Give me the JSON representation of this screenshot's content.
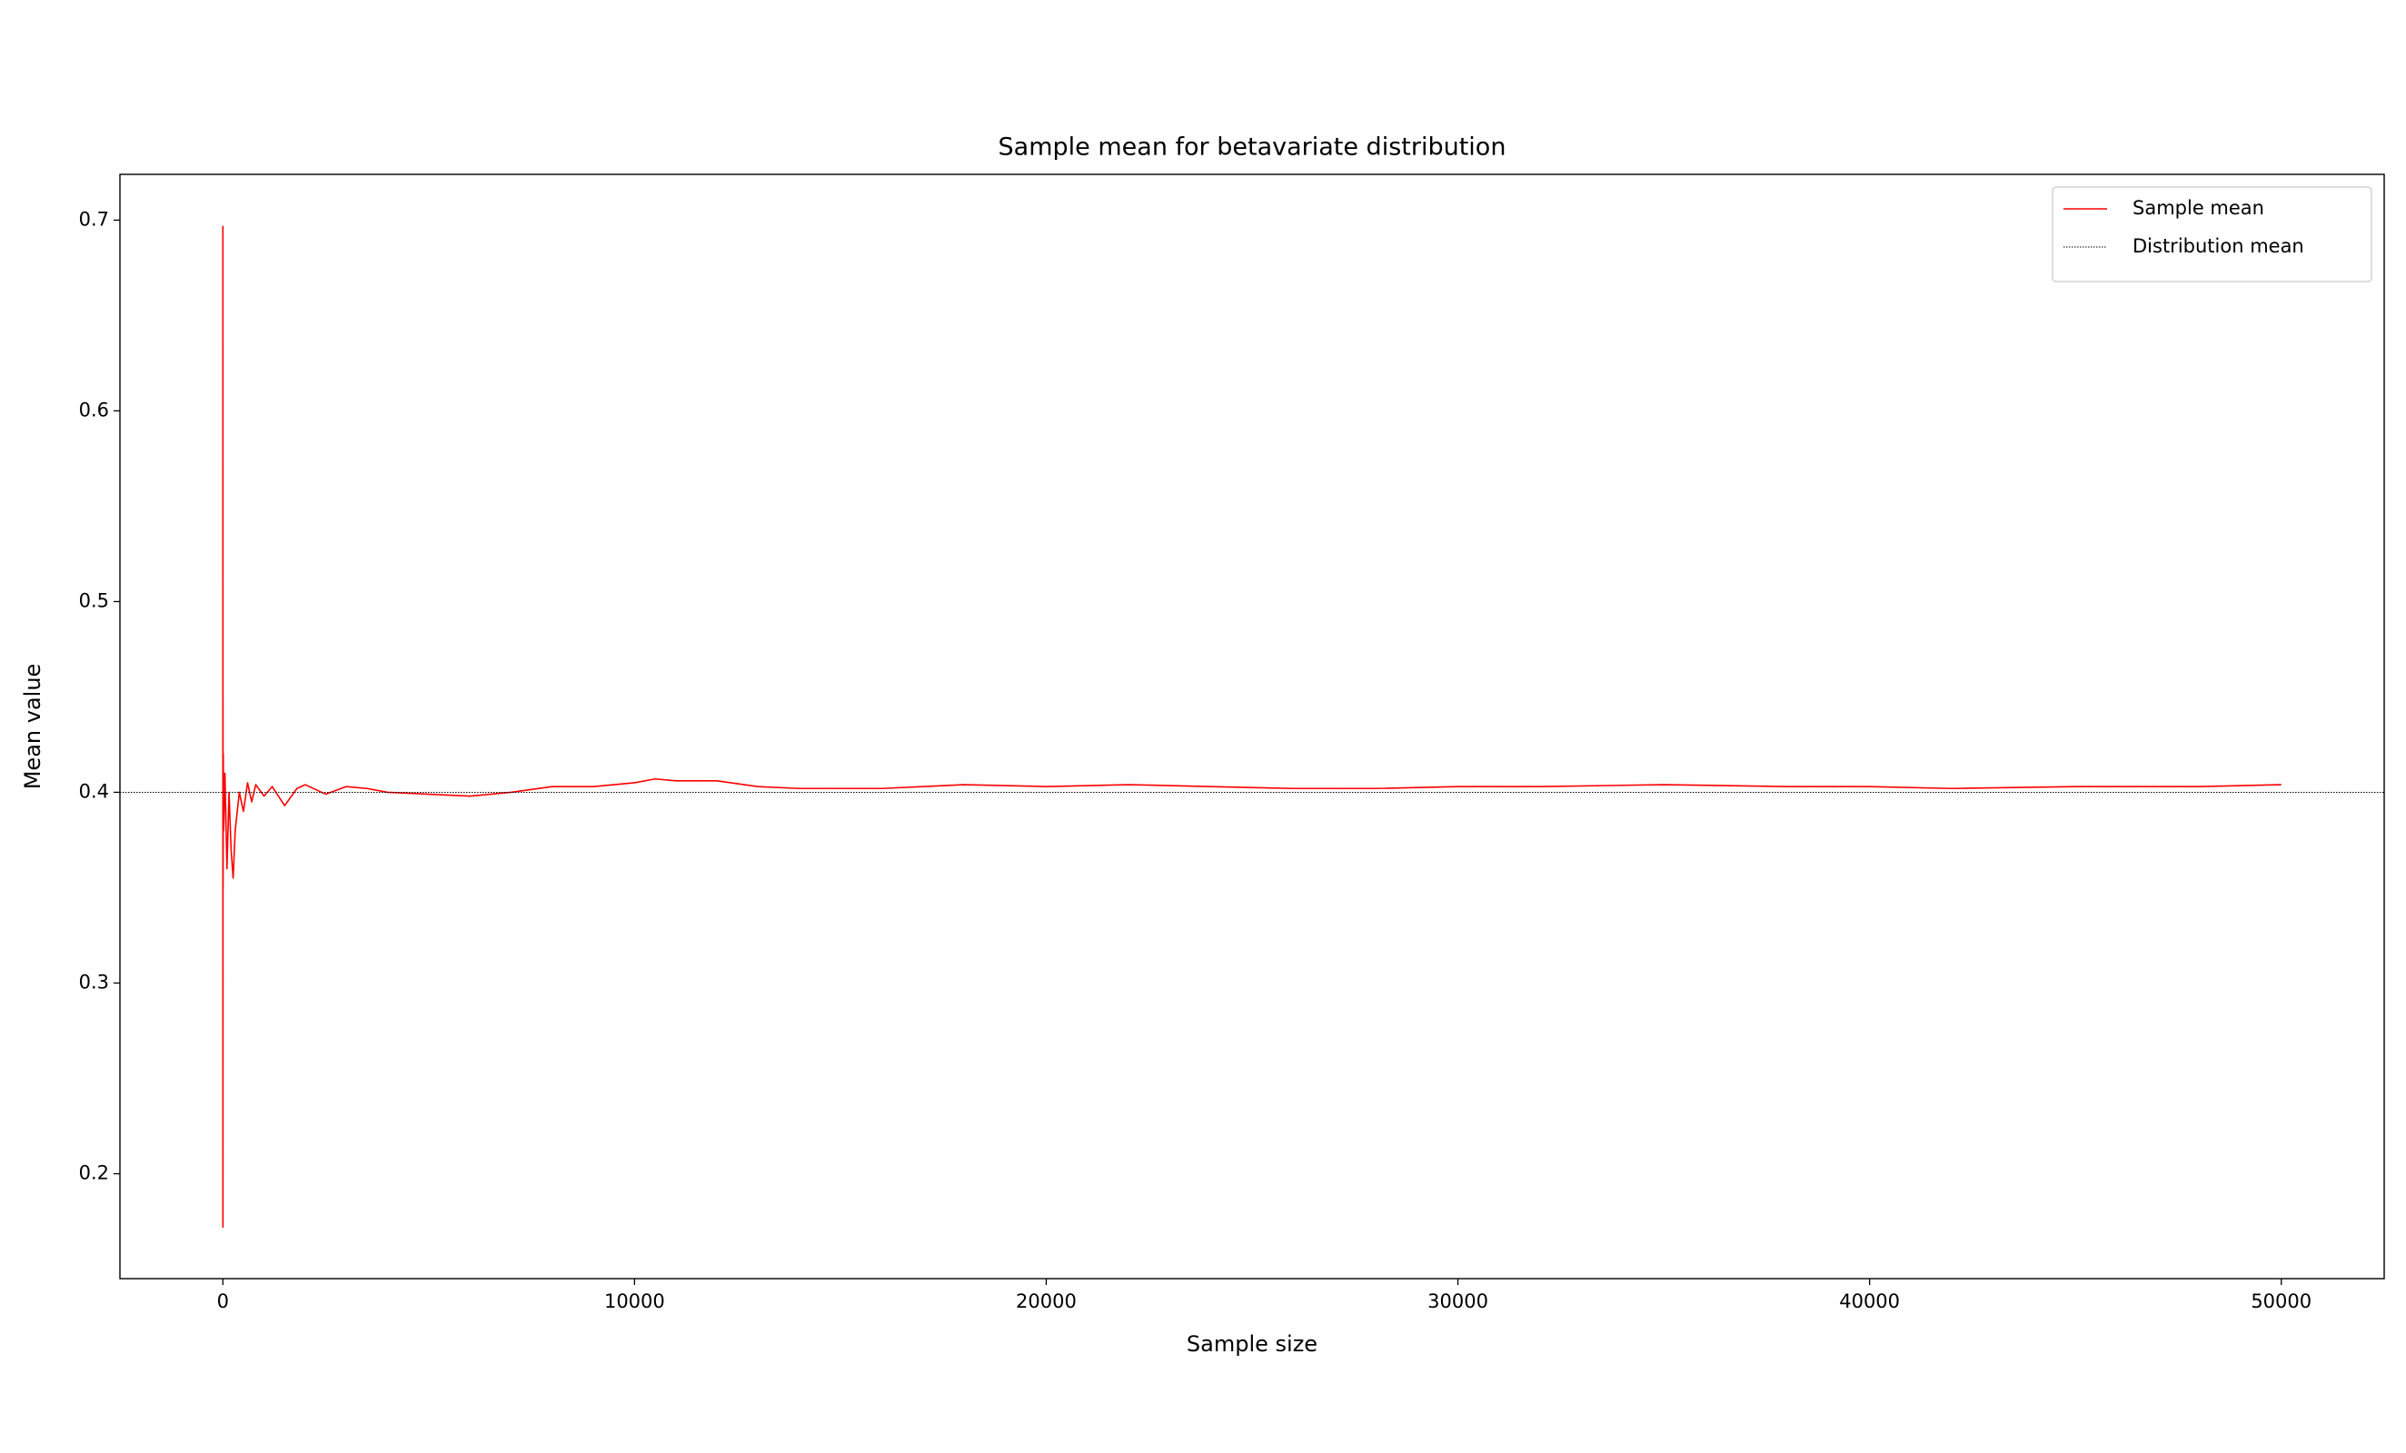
{
  "chart_data": {
    "type": "line",
    "title": "Sample mean for betavariate distribution",
    "x_label": "Sample size",
    "y_label": "Mean value",
    "x": [
      1,
      2,
      3,
      5,
      10,
      20,
      50,
      100,
      150,
      200,
      250,
      300,
      400,
      500,
      600,
      700,
      800,
      1000,
      1200,
      1500,
      1800,
      2000,
      2500,
      3000,
      3500,
      4000,
      5000,
      6000,
      7000,
      8000,
      9000,
      10000,
      10500,
      11000,
      12000,
      13000,
      14000,
      15000,
      16000,
      17000,
      18000,
      20000,
      22000,
      24000,
      26000,
      28000,
      30000,
      32000,
      35000,
      38000,
      40000,
      42000,
      45000,
      48000,
      50000
    ],
    "series": [
      {
        "name": "Sample mean",
        "color": "#ff0000",
        "values": [
          0.697,
          0.172,
          0.45,
          0.35,
          0.42,
          0.38,
          0.41,
          0.36,
          0.4,
          0.37,
          0.355,
          0.38,
          0.4,
          0.39,
          0.405,
          0.395,
          0.404,
          0.398,
          0.403,
          0.393,
          0.402,
          0.404,
          0.399,
          0.403,
          0.402,
          0.4,
          0.399,
          0.398,
          0.4,
          0.403,
          0.403,
          0.405,
          0.407,
          0.406,
          0.406,
          0.403,
          0.402,
          0.402,
          0.402,
          0.403,
          0.404,
          0.403,
          0.404,
          0.403,
          0.402,
          0.402,
          0.403,
          0.403,
          0.404,
          0.403,
          0.403,
          0.402,
          0.403,
          0.403,
          0.404
        ]
      }
    ],
    "reference": {
      "name": "Distribution mean",
      "color": "#000000",
      "value": 0.4
    },
    "xlim": [
      -2500,
      52500
    ],
    "xticks": [
      0,
      10000,
      20000,
      30000,
      40000,
      50000
    ],
    "ylim": [
      0.145,
      0.724
    ],
    "yticks": [
      0.2,
      0.3,
      0.4,
      0.5,
      0.6,
      0.7
    ],
    "legend": "upper right"
  }
}
